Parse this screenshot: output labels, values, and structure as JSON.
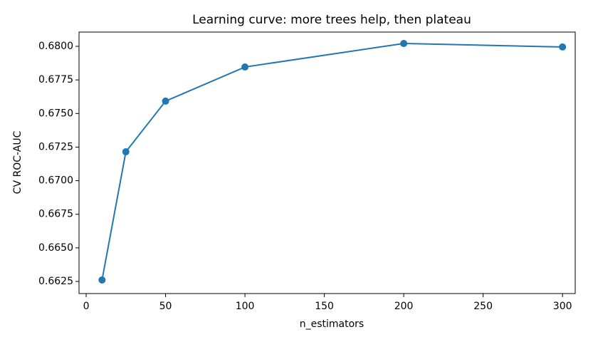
{
  "chart_data": {
    "type": "line",
    "title": "Learning curve: more trees help, then plateau",
    "xlabel": "n_estimators",
    "ylabel": "CV ROC-AUC",
    "x": [
      10,
      25,
      50,
      100,
      200,
      300
    ],
    "series": [
      {
        "color": "#1f77b4",
        "values": [
          0.66261,
          0.67215,
          0.67592,
          0.67846,
          0.68021,
          0.67995
        ]
      }
    ],
    "xlim": [
      -4.5,
      308
    ],
    "xticks": [
      0,
      50,
      100,
      150,
      200,
      250,
      300
    ],
    "ylim": [
      0.6616,
      0.68106
    ],
    "yticks": [
      0.6625,
      {
        "value": 0.665,
        "label": "0.6650"
      },
      0.6675,
      {
        "value": 0.67,
        "label": "0.6700"
      },
      0.6725,
      {
        "value": 0.675,
        "label": "0.6750"
      },
      0.6775,
      {
        "value": 0.68,
        "label": "0.6800"
      }
    ],
    "grid": false
  }
}
